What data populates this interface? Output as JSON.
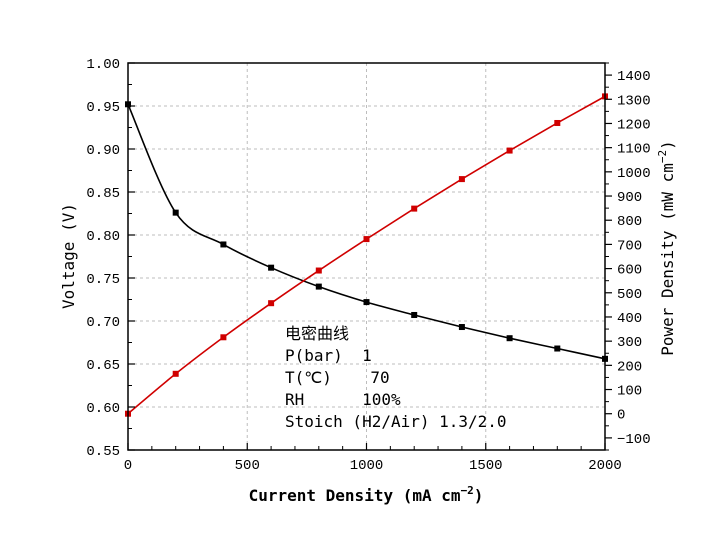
{
  "chart_data": {
    "type": "line",
    "title": "",
    "xlabel": "Current Density (mA cm",
    "xlabel_sup": "−2",
    "xlabel_close": ")",
    "ylabel": "Voltage (V)",
    "y2label": "Power Density (mW cm",
    "y2label_sup": "−2",
    "y2label_close": ")",
    "xlim": [
      0,
      2000
    ],
    "ylim": [
      0.55,
      1.0
    ],
    "y2lim": [
      -150,
      1450
    ],
    "x_ticks": [
      0,
      500,
      1000,
      1500,
      2000
    ],
    "x_tick_labels": [
      "0",
      "500",
      "1000",
      "1500",
      "2000"
    ],
    "y_ticks": [
      0.55,
      0.6,
      0.65,
      0.7,
      0.75,
      0.8,
      0.85,
      0.9,
      0.95,
      1.0
    ],
    "y_tick_labels": [
      "0.55",
      "0.60",
      "0.65",
      "0.70",
      "0.75",
      "0.80",
      "0.85",
      "0.90",
      "0.95",
      "1.00"
    ],
    "y2_ticks": [
      -100,
      0,
      100,
      200,
      300,
      400,
      500,
      600,
      700,
      800,
      900,
      1000,
      1100,
      1200,
      1300,
      1400
    ],
    "y2_tick_labels": [
      "−100",
      "0",
      "100",
      "200",
      "300",
      "400",
      "500",
      "600",
      "700",
      "800",
      "900",
      "1000",
      "1100",
      "1200",
      "1300",
      "1400"
    ],
    "grid": true,
    "series": [
      {
        "axis": "left",
        "color": "#000000",
        "marker": "square",
        "x": [
          0,
          200,
          400,
          600,
          800,
          1000,
          1200,
          1400,
          1600,
          1800,
          2000
        ],
        "values": [
          0.952,
          0.826,
          0.789,
          0.762,
          0.74,
          0.722,
          0.707,
          0.693,
          0.68,
          0.668,
          0.656
        ]
      },
      {
        "axis": "right",
        "color": "#d00000",
        "marker": "square",
        "x": [
          0,
          200,
          400,
          600,
          800,
          1000,
          1200,
          1400,
          1600,
          1800,
          2000
        ],
        "values": [
          0,
          165,
          316,
          457,
          592,
          722,
          848,
          970,
          1088,
          1202,
          1312
        ]
      }
    ],
    "annotation": {
      "lines": [
        "电密曲线",
        "P(bar)  1",
        "T(℃)    70",
        "RH      100%",
        "Stoich (H2/Air) 1.3/2.0"
      ]
    }
  }
}
